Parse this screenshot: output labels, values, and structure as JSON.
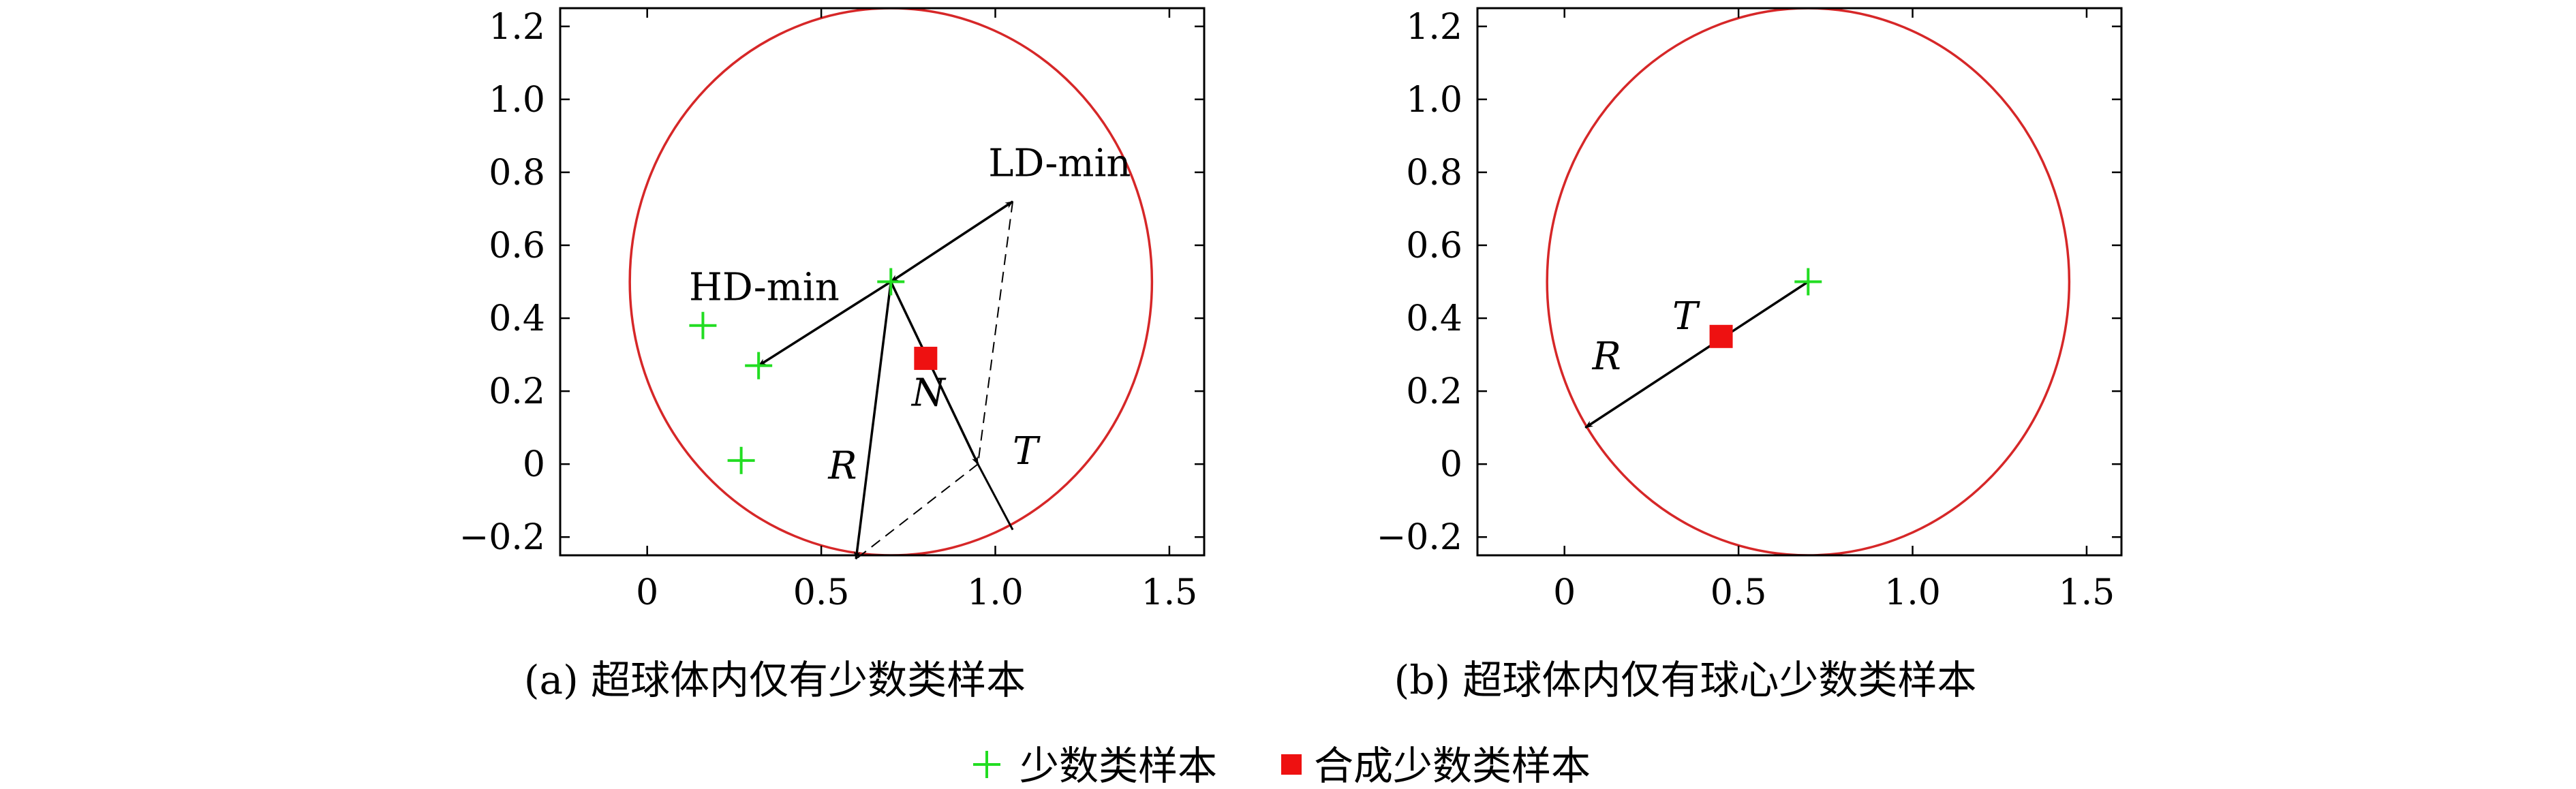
{
  "chart_data": [
    {
      "type": "scatter",
      "caption": "(a) 超球体内仅有少数类样本",
      "xlim": [
        -0.25,
        1.6
      ],
      "ylim": [
        -0.25,
        1.25
      ],
      "xticks": [
        0,
        0.5,
        1.0,
        1.5
      ],
      "xtick_labels": [
        "0",
        "0.5",
        "1.0",
        "1.5"
      ],
      "yticks": [
        1.2,
        1.0,
        0.8,
        0.6,
        0.4,
        0.2,
        0,
        -0.2
      ],
      "ytick_labels": [
        "1.2",
        "1.0",
        "0.8",
        "0.6",
        "0.4",
        "0.2",
        "0",
        "−0.2"
      ],
      "circle": {
        "center": [
          0.7,
          0.5
        ],
        "radius": 0.75,
        "color": "#d62728"
      },
      "minority_points": [
        [
          0.7,
          0.5
        ],
        [
          0.32,
          0.27
        ],
        [
          0.16,
          0.38
        ],
        [
          0.27,
          0.01
        ]
      ],
      "synthetic_points": [
        [
          0.8,
          0.29
        ]
      ],
      "arrows": [
        {
          "from": [
            0.7,
            0.5
          ],
          "to": [
            1.05,
            0.72
          ],
          "style": "solid",
          "both": true
        },
        {
          "from": [
            0.7,
            0.5
          ],
          "to": [
            0.32,
            0.27
          ],
          "style": "solid",
          "both": false
        },
        {
          "from": [
            0.7,
            0.5
          ],
          "to": [
            0.95,
            0.0
          ],
          "style": "solid",
          "both": false
        },
        {
          "from": [
            0.7,
            0.5
          ],
          "to": [
            0.6,
            -0.26
          ],
          "style": "solid",
          "both": false
        }
      ],
      "lines": [
        {
          "from": [
            0.95,
            0.0
          ],
          "to": [
            1.05,
            -0.18
          ],
          "style": "solid"
        },
        {
          "from": [
            1.05,
            0.72
          ],
          "to": [
            0.95,
            0.0
          ],
          "style": "dashed"
        },
        {
          "from": [
            0.95,
            0.0
          ],
          "to": [
            0.6,
            -0.26
          ],
          "style": "dashed"
        }
      ],
      "annotations": [
        {
          "text": "LD-min",
          "x": 0.98,
          "y": 0.79,
          "italic": false
        },
        {
          "text": "HD-min",
          "x": 0.12,
          "y": 0.45,
          "italic": false
        },
        {
          "text": "N",
          "x": 0.76,
          "y": 0.16,
          "italic": true
        },
        {
          "text": "T",
          "x": 1.05,
          "y": 0.0,
          "italic": true
        },
        {
          "text": "R",
          "x": 0.52,
          "y": -0.04,
          "italic": true
        }
      ]
    },
    {
      "type": "scatter",
      "caption": "(b) 超球体内仅有球心少数类样本",
      "xlim": [
        -0.25,
        1.6
      ],
      "ylim": [
        -0.25,
        1.25
      ],
      "xticks": [
        0,
        0.5,
        1.0,
        1.5
      ],
      "xtick_labels": [
        "0",
        "0.5",
        "1.0",
        "1.5"
      ],
      "yticks": [
        1.2,
        1.0,
        0.8,
        0.6,
        0.4,
        0.2,
        0,
        -0.2
      ],
      "ytick_labels": [
        "1.2",
        "1.0",
        "0.8",
        "0.6",
        "0.4",
        "0.2",
        "0",
        "−0.2"
      ],
      "circle": {
        "center": [
          0.7,
          0.5
        ],
        "radius": 0.75,
        "color": "#d62728"
      },
      "minority_points": [
        [
          0.7,
          0.5
        ]
      ],
      "synthetic_points": [
        [
          0.45,
          0.35
        ]
      ],
      "arrows": [
        {
          "from": [
            0.7,
            0.5
          ],
          "to": [
            0.06,
            0.1
          ],
          "style": "solid",
          "both": false
        }
      ],
      "lines": [],
      "annotations": [
        {
          "text": "T",
          "x": 0.31,
          "y": 0.37,
          "italic": true
        },
        {
          "text": "R",
          "x": 0.08,
          "y": 0.26,
          "italic": true
        }
      ]
    }
  ],
  "legend": {
    "minority_label": "少数类样本",
    "synthetic_label": "合成少数类样本",
    "minority_color": "#22dd22",
    "synthetic_color": "#ee1111"
  }
}
